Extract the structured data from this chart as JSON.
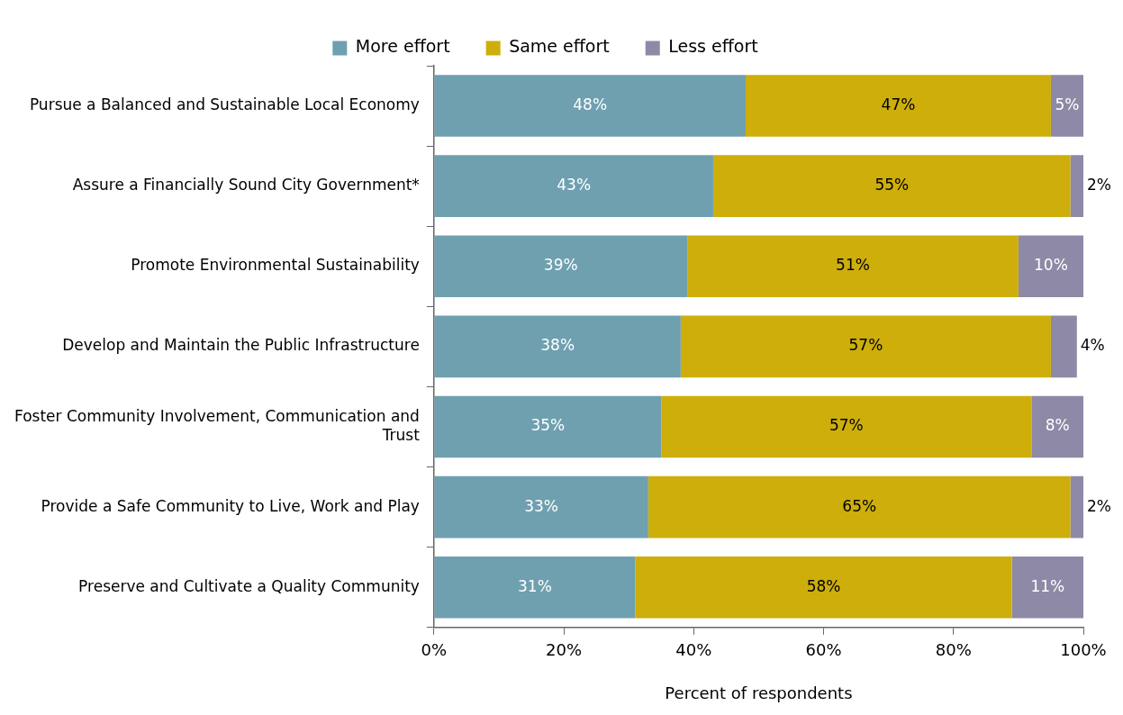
{
  "chart_data": {
    "type": "bar",
    "orientation": "horizontal",
    "stacked": true,
    "xlabel": "Percent of respondents",
    "legend": "top",
    "categories": [
      "Pursue a Balanced and Sustainable Local Economy",
      "Assure a Financially Sound City Government*",
      "Promote Environmental Sustainability",
      "Develop and Maintain the Public Infrastructure",
      "Foster Community Involvement, Communication and Trust",
      "Provide a Safe Community to Live, Work and Play",
      "Preserve and Cultivate a Quality Community"
    ],
    "series": [
      {
        "name": "More effort",
        "color": "#6fa0b0",
        "values": [
          48,
          43,
          39,
          38,
          35,
          33,
          31
        ],
        "value_labels": [
          "48%",
          "43%",
          "39%",
          "38%",
          "35%",
          "33%",
          "31%"
        ]
      },
      {
        "name": "Same effort",
        "color": "#cdae0b",
        "values": [
          47,
          55,
          51,
          57,
          57,
          65,
          58
        ],
        "value_labels": [
          "47%",
          "55%",
          "51%",
          "57%",
          "57%",
          "65%",
          "58%"
        ]
      },
      {
        "name": "Less effort",
        "color": "#8e89a6",
        "values": [
          5,
          2,
          10,
          4,
          8,
          2,
          11
        ],
        "value_labels": [
          "5%",
          "2%",
          "10%",
          "4%",
          "8%",
          "2%",
          "11%"
        ]
      }
    ],
    "xlim": [
      0,
      100
    ],
    "xticks": [
      {
        "value": 0,
        "label": "0%"
      },
      {
        "value": 20,
        "label": "20%"
      },
      {
        "value": 40,
        "label": "40%"
      },
      {
        "value": 60,
        "label": "60%"
      },
      {
        "value": 80,
        "label": "80%"
      },
      {
        "value": 100,
        "label": "100%"
      }
    ],
    "grid": false
  }
}
